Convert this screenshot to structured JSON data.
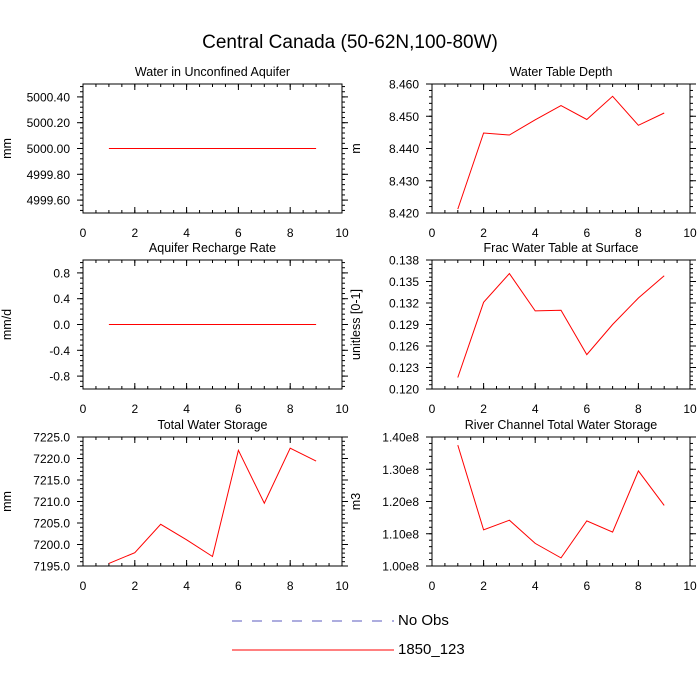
{
  "figure": {
    "title": "Central Canada (50-62N,100-80W)"
  },
  "chart_data": [
    {
      "type": "line",
      "title": "Water in Unconfined Aquifer",
      "xlabel": "",
      "ylabel": "mm",
      "xlim": [
        0,
        10
      ],
      "ylim": [
        4999.5,
        5000.5
      ],
      "x_ticks": [
        0,
        2,
        4,
        6,
        8,
        10
      ],
      "x_tick_labels": [
        "0",
        "2",
        "4",
        "6",
        "8",
        "10"
      ],
      "y_ticks": [
        4999.6,
        4999.8,
        5000.0,
        5000.2,
        5000.4
      ],
      "y_tick_labels": [
        "4999.60",
        "4999.80",
        "5000.00",
        "5000.20",
        "5000.40"
      ],
      "y_minor_step": 0.04,
      "series": [
        {
          "name": "1850_123",
          "color": "#ff0000",
          "x": [
            1,
            2,
            3,
            4,
            5,
            6,
            7,
            8,
            9
          ],
          "values": [
            5000,
            5000,
            5000,
            5000,
            5000,
            5000,
            5000,
            5000,
            5000
          ]
        }
      ]
    },
    {
      "type": "line",
      "title": "Water Table Depth",
      "xlabel": "",
      "ylabel": "m",
      "xlim": [
        0,
        10
      ],
      "ylim": [
        8.42,
        8.46
      ],
      "x_ticks": [
        0,
        2,
        4,
        6,
        8,
        10
      ],
      "x_tick_labels": [
        "0",
        "2",
        "4",
        "6",
        "8",
        "10"
      ],
      "y_ticks": [
        8.42,
        8.43,
        8.44,
        8.45,
        8.46
      ],
      "y_tick_labels": [
        "8.420",
        "8.430",
        "8.440",
        "8.450",
        "8.460"
      ],
      "y_minor_step": 0.002,
      "series": [
        {
          "name": "1850_123",
          "color": "#ff0000",
          "x": [
            1,
            2,
            3,
            4,
            5,
            6,
            7,
            8,
            9
          ],
          "values": [
            8.4212,
            8.4448,
            8.4442,
            8.4489,
            8.4533,
            8.449,
            8.4562,
            8.4472,
            8.451
          ]
        }
      ]
    },
    {
      "type": "line",
      "title": "Aquifer Recharge Rate",
      "xlabel": "",
      "ylabel": "mm/d",
      "xlim": [
        0,
        10
      ],
      "ylim": [
        -1.0,
        1.0
      ],
      "x_ticks": [
        0,
        2,
        4,
        6,
        8,
        10
      ],
      "x_tick_labels": [
        "0",
        "2",
        "4",
        "6",
        "8",
        "10"
      ],
      "y_ticks": [
        -0.8,
        -0.4,
        0.0,
        0.4,
        0.8
      ],
      "y_tick_labels": [
        "-0.8",
        "-0.4",
        "0.0",
        "0.4",
        "0.8"
      ],
      "y_minor_step": 0.08,
      "series": [
        {
          "name": "1850_123",
          "color": "#ff0000",
          "x": [
            1,
            2,
            3,
            4,
            5,
            6,
            7,
            8,
            9
          ],
          "values": [
            0,
            0,
            0,
            0,
            0,
            0,
            0,
            0,
            0
          ]
        }
      ]
    },
    {
      "type": "line",
      "title": "Frac Water Table at Surface",
      "xlabel": "",
      "ylabel": "unitless [0-1]",
      "xlim": [
        0,
        10
      ],
      "ylim": [
        0.12,
        0.138
      ],
      "x_ticks": [
        0,
        2,
        4,
        6,
        8,
        10
      ],
      "x_tick_labels": [
        "0",
        "2",
        "4",
        "6",
        "8",
        "10"
      ],
      "y_ticks": [
        0.12,
        0.123,
        0.126,
        0.129,
        0.132,
        0.135,
        0.138
      ],
      "y_tick_labels": [
        "0.120",
        "0.123",
        "0.126",
        "0.129",
        "0.132",
        "0.135",
        "0.138"
      ],
      "y_minor_step": 0.0006,
      "series": [
        {
          "name": "1850_123",
          "color": "#ff0000",
          "x": [
            1,
            2,
            3,
            4,
            5,
            6,
            7,
            8,
            9
          ],
          "values": [
            0.1216,
            0.1321,
            0.1361,
            0.1309,
            0.131,
            0.1248,
            0.129,
            0.1327,
            0.1358
          ]
        }
      ]
    },
    {
      "type": "line",
      "title": "Total Water Storage",
      "xlabel": "",
      "ylabel": "mm",
      "xlim": [
        0,
        10
      ],
      "ylim": [
        7195,
        7225
      ],
      "x_ticks": [
        0,
        2,
        4,
        6,
        8,
        10
      ],
      "x_tick_labels": [
        "0",
        "2",
        "4",
        "6",
        "8",
        "10"
      ],
      "y_ticks": [
        7195,
        7200,
        7205,
        7210,
        7215,
        7220,
        7225
      ],
      "y_tick_labels": [
        "7195.0",
        "7200.0",
        "7205.0",
        "7210.0",
        "7215.0",
        "7220.0",
        "7225.0"
      ],
      "y_minor_step": 1,
      "series": [
        {
          "name": "1850_123",
          "color": "#ff0000",
          "x": [
            1,
            2,
            3,
            4,
            5,
            6,
            7,
            8,
            9
          ],
          "values": [
            7195.6,
            7198.1,
            7204.7,
            7201.1,
            7197.2,
            7221.9,
            7209.6,
            7222.4,
            7219.4
          ]
        }
      ]
    },
    {
      "type": "line",
      "title": "River Channel Total Water Storage",
      "xlabel": "",
      "ylabel": "m3",
      "xlim": [
        0,
        10
      ],
      "ylim": [
        100000000,
        140000000
      ],
      "x_ticks": [
        0,
        2,
        4,
        6,
        8,
        10
      ],
      "x_tick_labels": [
        "0",
        "2",
        "4",
        "6",
        "8",
        "10"
      ],
      "y_ticks": [
        100000000,
        110000000,
        120000000,
        130000000,
        140000000
      ],
      "y_tick_labels": [
        "1.00e8",
        "1.10e8",
        "1.20e8",
        "1.30e8",
        "1.40e8"
      ],
      "y_minor_step": 2000000,
      "series": [
        {
          "name": "1850_123",
          "color": "#ff0000",
          "x": [
            1,
            2,
            3,
            4,
            5,
            6,
            7,
            8,
            9
          ],
          "values": [
            137500000,
            111200000,
            114200000,
            107000000,
            102500000,
            114000000,
            110500000,
            129500000,
            118800000
          ]
        }
      ]
    }
  ],
  "legend": [
    {
      "label": "No Obs",
      "color": "#5b5bbf",
      "style": "dashed"
    },
    {
      "label": "1850_123",
      "color": "#ff0000",
      "style": "solid"
    }
  ]
}
